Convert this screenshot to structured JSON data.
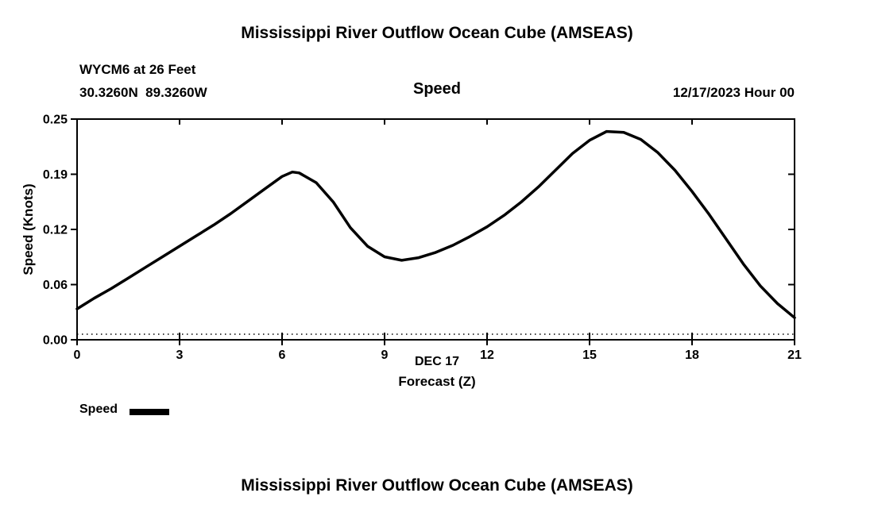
{
  "chart_data": {
    "type": "line",
    "title": "Mississippi River Outflow Ocean Cube (AMSEAS)",
    "station": "WYCM6 at 26 Feet",
    "coords": "30.3260N  89.3260W",
    "subtitle": "Speed",
    "datetime": "12/17/2023 Hour 00",
    "xlabel_line1": "DEC 17",
    "xlabel_line2": "Forecast (Z)",
    "ylabel": "Speed (Knots)",
    "xlim": [
      0,
      21
    ],
    "ylim": [
      0,
      0.25
    ],
    "xticks": [
      0,
      3,
      6,
      9,
      12,
      15,
      18,
      21
    ],
    "xtick_labels": [
      "0",
      "3",
      "6",
      "9",
      "12",
      "15",
      "18",
      "21"
    ],
    "ytick_values": [
      0,
      0.0625,
      0.125,
      0.1875,
      0.25
    ],
    "ytick_labels": [
      "0.00",
      "0.06",
      "0.12",
      "0.19",
      "0.25"
    ],
    "grid": false,
    "legend_position": "bottom-left",
    "legend": {
      "speed_label": "Speed"
    },
    "line_color": "#000000",
    "background_color": "#ffffff",
    "series": [
      {
        "name": "Speed",
        "x": [
          0,
          0.5,
          1,
          1.5,
          2,
          2.5,
          3,
          3.5,
          4,
          4.5,
          5,
          5.5,
          6,
          6.3,
          6.5,
          7,
          7.5,
          8,
          8.5,
          9,
          9.5,
          10,
          10.5,
          11,
          11.5,
          12,
          12.5,
          13,
          13.5,
          14,
          14.5,
          15,
          15.5,
          16,
          16.5,
          17,
          17.5,
          18,
          18.5,
          19,
          19.5,
          20,
          20.5,
          21
        ],
        "y": [
          0.035,
          0.047,
          0.058,
          0.07,
          0.082,
          0.094,
          0.106,
          0.118,
          0.13,
          0.143,
          0.157,
          0.171,
          0.185,
          0.19,
          0.189,
          0.178,
          0.156,
          0.127,
          0.106,
          0.094,
          0.09,
          0.093,
          0.099,
          0.107,
          0.117,
          0.128,
          0.141,
          0.156,
          0.173,
          0.192,
          0.211,
          0.226,
          0.236,
          0.235,
          0.227,
          0.212,
          0.192,
          0.168,
          0.142,
          0.114,
          0.086,
          0.061,
          0.041,
          0.025
        ]
      }
    ]
  },
  "footer": {
    "next_chart_title": "Mississippi River Outflow Ocean Cube (AMSEAS)"
  }
}
